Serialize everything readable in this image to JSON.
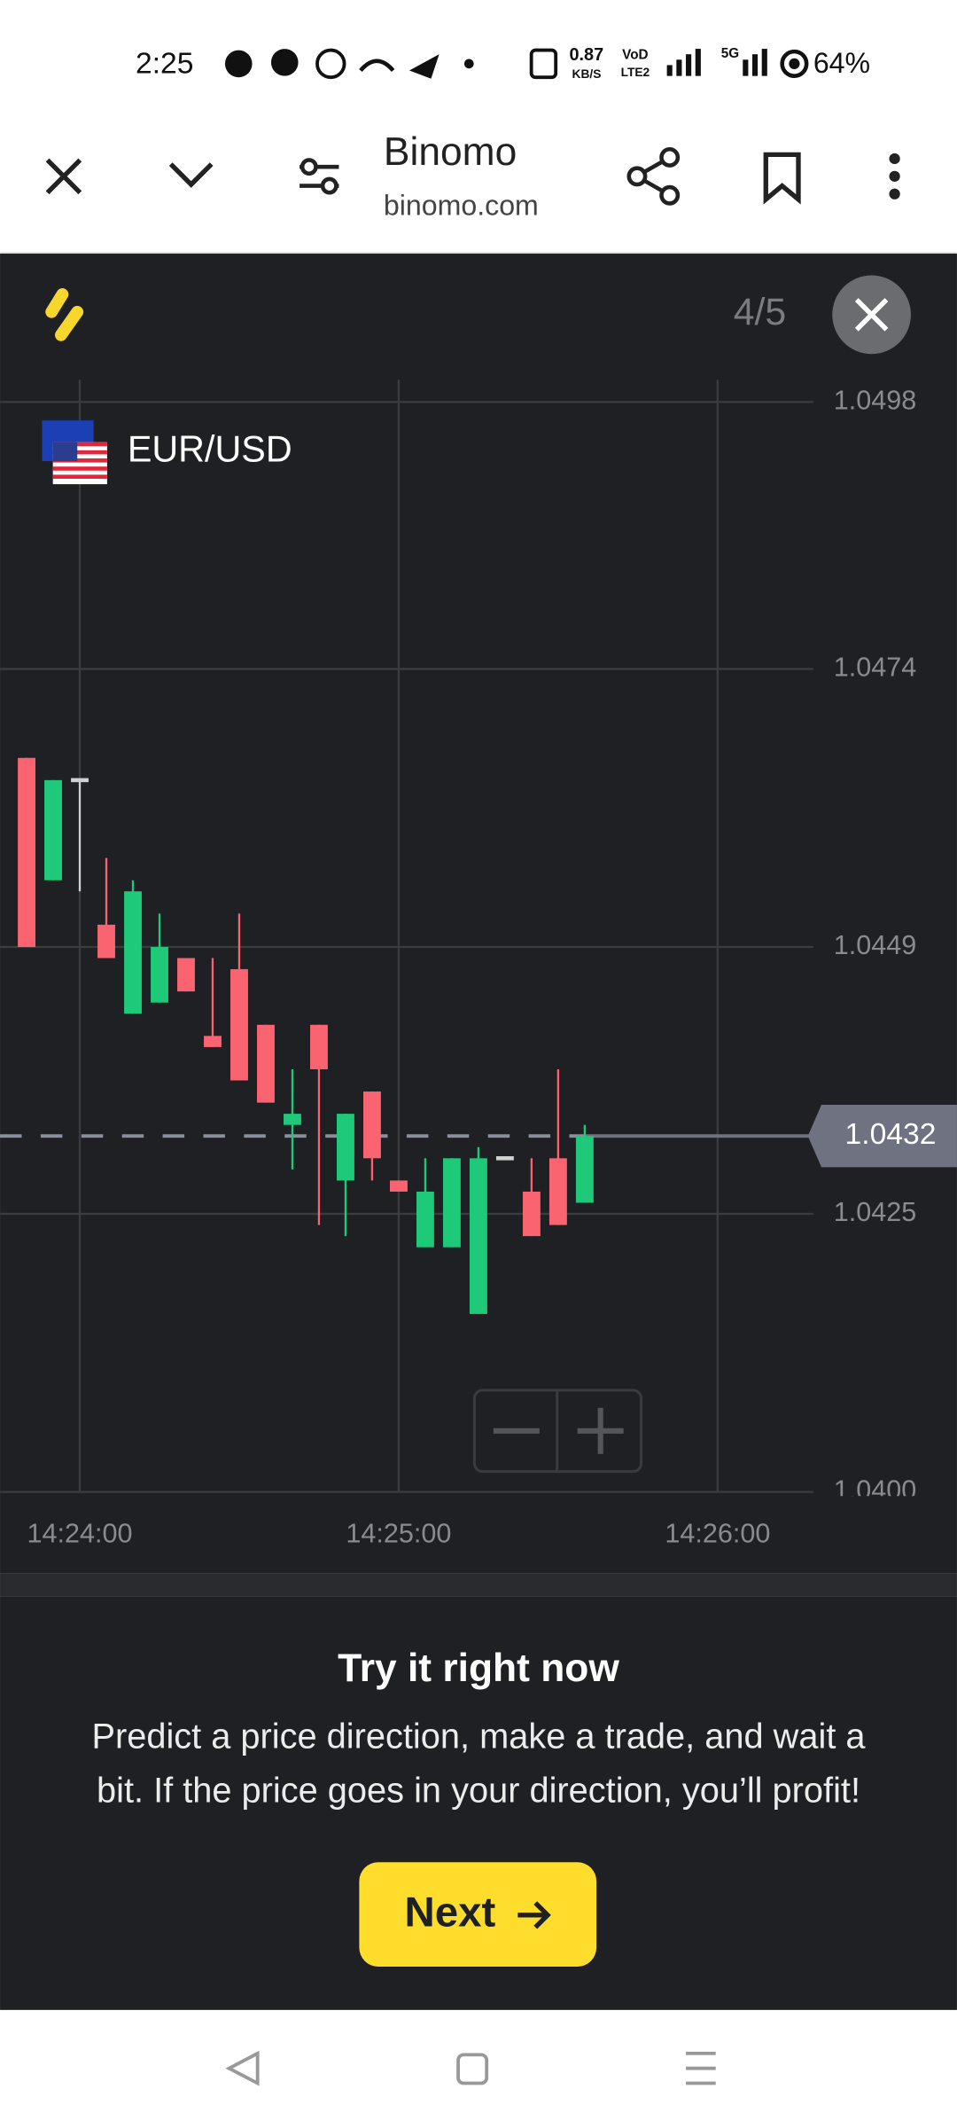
{
  "status_bar": {
    "time": "2:25",
    "network_speed": "0.87",
    "speed_unit": "KB/S",
    "volte_top": "VoD",
    "volte_bottom": "LTE2",
    "network_type": "5G",
    "battery": "64%"
  },
  "browser_bar": {
    "title": "Binomo",
    "url": "binomo.com"
  },
  "tutorial": {
    "step": "4/5",
    "heading": "Try it right now",
    "body_lines": [
      "Predict a price direction, make a trade, and wait a",
      "bit. If the price goes in your direction, you’ll profit!"
    ],
    "button": "Next"
  },
  "chart_data": {
    "type": "candlestick",
    "symbol": "EUR/USD",
    "up_color": "#1ec97a",
    "down_color": "#fa6470",
    "flat_color": "#d0d0d0",
    "xlim": [
      "14:23:45",
      "14:26:18"
    ],
    "xticks": [
      "14:24:00",
      "14:25:00",
      "14:26:00"
    ],
    "ylim": [
      1.04,
      1.05
    ],
    "yticks": [
      1.0498,
      1.0474,
      1.0449,
      1.0425,
      {
        "value": 1.04,
        "label": "1.0400"
      }
    ],
    "grid": true,
    "current_price": 1.0432,
    "candles": [
      {
        "time": "14:23:50",
        "open": 1.0466,
        "high": 1.0466,
        "low": 1.0449,
        "close": 1.0449
      },
      {
        "time": "14:23:55",
        "open": 1.0455,
        "high": 1.0464,
        "low": 1.0455,
        "close": 1.0464
      },
      {
        "time": "14:24:00",
        "open": 1.0464,
        "high": 1.0464,
        "low": 1.0454,
        "close": 1.0464
      },
      {
        "time": "14:24:05",
        "open": 1.0451,
        "high": 1.0457,
        "low": 1.0448,
        "close": 1.0448
      },
      {
        "time": "14:24:10",
        "open": 1.0443,
        "high": 1.0455,
        "low": 1.0443,
        "close": 1.0454
      },
      {
        "time": "14:24:15",
        "open": 1.0444,
        "high": 1.0452,
        "low": 1.0444,
        "close": 1.0449
      },
      {
        "time": "14:24:20",
        "open": 1.0448,
        "high": 1.0448,
        "low": 1.0445,
        "close": 1.0445
      },
      {
        "time": "14:24:25",
        "open": 1.0441,
        "high": 1.0448,
        "low": 1.044,
        "close": 1.044
      },
      {
        "time": "14:24:30",
        "open": 1.0447,
        "high": 1.0452,
        "low": 1.0437,
        "close": 1.0437
      },
      {
        "time": "14:24:35",
        "open": 1.0442,
        "high": 1.0442,
        "low": 1.0435,
        "close": 1.0435
      },
      {
        "time": "14:24:40",
        "open": 1.0433,
        "high": 1.0438,
        "low": 1.0429,
        "close": 1.0434
      },
      {
        "time": "14:24:45",
        "open": 1.0442,
        "high": 1.0442,
        "low": 1.0424,
        "close": 1.0438
      },
      {
        "time": "14:24:50",
        "open": 1.0428,
        "high": 1.0434,
        "low": 1.0423,
        "close": 1.0434
      },
      {
        "time": "14:24:55",
        "open": 1.0436,
        "high": 1.0436,
        "low": 1.0428,
        "close": 1.043
      },
      {
        "time": "14:25:00",
        "open": 1.0428,
        "high": 1.0428,
        "low": 1.0427,
        "close": 1.0427
      },
      {
        "time": "14:25:05",
        "open": 1.0422,
        "high": 1.043,
        "low": 1.0422,
        "close": 1.0427
      },
      {
        "time": "14:25:10",
        "open": 1.0422,
        "high": 1.043,
        "low": 1.0422,
        "close": 1.043
      },
      {
        "time": "14:25:15",
        "open": 1.0416,
        "high": 1.0431,
        "low": 1.0416,
        "close": 1.043
      },
      {
        "time": "14:25:20",
        "open": 1.043,
        "high": 1.043,
        "low": 1.043,
        "close": 1.043
      },
      {
        "time": "14:25:25",
        "open": 1.0427,
        "high": 1.043,
        "low": 1.0423,
        "close": 1.0423
      },
      {
        "time": "14:25:30",
        "open": 1.043,
        "high": 1.0438,
        "low": 1.0424,
        "close": 1.0424
      },
      {
        "time": "14:25:35",
        "open": 1.0426,
        "high": 1.0433,
        "low": 1.0426,
        "close": 1.0432
      }
    ]
  }
}
